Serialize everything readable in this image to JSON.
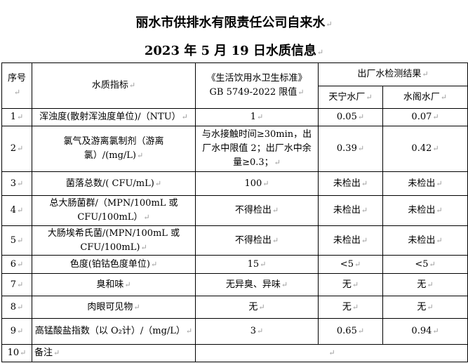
{
  "title": "丽水市供排水有限责任公司自来水",
  "subtitle": "2023 年 5 月 19 日水质信息",
  "headers": {
    "no": "序号",
    "indicator": "水质指标",
    "standard_line1": "《生活饮用水卫生标准》",
    "standard_line2": "GB 5749-2022 限值",
    "results": "出厂水检测结果",
    "plant1": "天宁水厂",
    "plant2": "水阁水厂"
  },
  "rows": [
    {
      "no": "1",
      "indicator": "浑浊度(散射浑浊度单位)/（NTU）",
      "limit": "1",
      "plant1": "0.05",
      "plant2": "0.07"
    },
    {
      "no": "2",
      "indicator": "氯气及游离氯制剂（游离氯）/(mg/L)",
      "limit": "与水接触时间≥30min，出厂水中限值 2；出厂水中余量≥0.3；",
      "plant1": "0.39",
      "plant2": "0.42"
    },
    {
      "no": "3",
      "indicator": "菌落总数/( CFU/mL)",
      "limit": "100",
      "plant1": "未检出",
      "plant2": "未检出"
    },
    {
      "no": "4",
      "indicator": "总大肠菌群/（MPN/100mL 或 CFU/100mL）",
      "limit": "不得检出",
      "plant1": "未检出",
      "plant2": "未检出"
    },
    {
      "no": "5",
      "indicator": "大肠埃希氏菌/(MPN/100mL 或 CFU/100mL)",
      "limit": "不得检出",
      "plant1": "未检出",
      "plant2": "未检出"
    },
    {
      "no": "6",
      "indicator": "色度(铂钴色度单位)",
      "limit": "15",
      "plant1": "<5",
      "plant2": "<5"
    },
    {
      "no": "7",
      "indicator": "臭和味",
      "limit": "无异臭、异味",
      "plant1": "无",
      "plant2": "无"
    },
    {
      "no": "8",
      "indicator": "肉眼可见物",
      "limit": "无",
      "plant1": "无",
      "plant2": "无"
    },
    {
      "no": "9",
      "indicator": "高锰酸盐指数（以 O₂计）/（mg/L）",
      "limit": "3",
      "plant1": "0.65",
      "plant2": "0.94"
    }
  ],
  "remarks": {
    "no": "10",
    "label": "备注",
    "value": ""
  }
}
